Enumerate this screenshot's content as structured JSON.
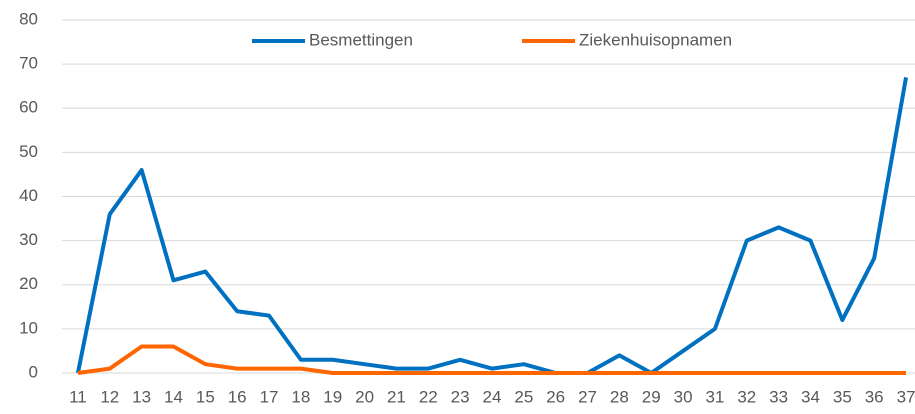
{
  "chart_data": {
    "type": "line",
    "categories": [
      "11",
      "12",
      "13",
      "14",
      "15",
      "16",
      "17",
      "18",
      "19",
      "20",
      "21",
      "22",
      "23",
      "24",
      "25",
      "26",
      "27",
      "28",
      "29",
      "30",
      "31",
      "32",
      "33",
      "34",
      "35",
      "36",
      "37"
    ],
    "series": [
      {
        "name": "Besmettingen",
        "color": "#0070c0",
        "values": [
          0,
          36,
          46,
          21,
          23,
          14,
          13,
          3,
          3,
          2,
          1,
          1,
          3,
          1,
          2,
          0,
          0,
          4,
          0,
          5,
          10,
          30,
          33,
          30,
          12,
          26,
          67
        ]
      },
      {
        "name": "Ziekenhuisopnamen",
        "color": "#ff6600",
        "values": [
          0,
          1,
          6,
          6,
          2,
          1,
          1,
          1,
          0,
          0,
          0,
          0,
          0,
          0,
          0,
          0,
          0,
          0,
          0,
          0,
          0,
          0,
          0,
          0,
          0,
          0,
          0
        ]
      }
    ],
    "ylim": [
      0,
      80
    ],
    "yticks": [
      0,
      10,
      20,
      30,
      40,
      50,
      60,
      70,
      80
    ],
    "grid": true,
    "legend": "top"
  }
}
